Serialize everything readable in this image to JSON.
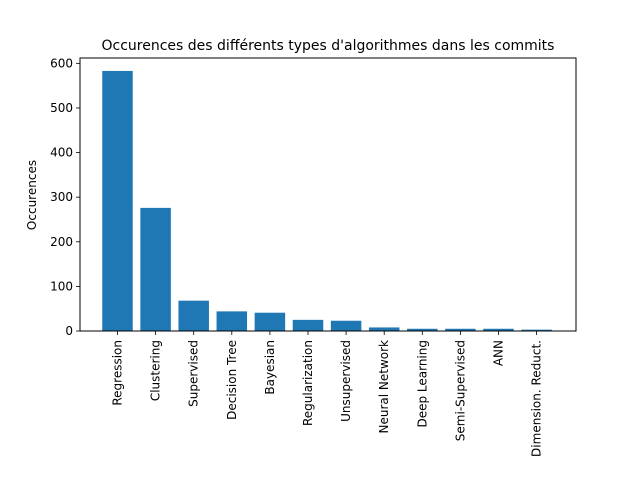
{
  "chart_data": {
    "type": "bar",
    "title": "Occurences des différents types d'algorithmes dans les commits",
    "xlabel": "",
    "ylabel": "Occurences",
    "ylim": [
      0,
      612
    ],
    "yticks": [
      0,
      100,
      200,
      300,
      400,
      500,
      600
    ],
    "grid": false,
    "bar_color": "#1f77b4",
    "categories": [
      "Regression",
      "Clustering",
      "Supervised",
      "Decision Tree",
      "Bayesian",
      "Regularization",
      "Unsupervised",
      "Neural Network",
      "Deep Learning",
      "Semi-Supervised",
      "ANN",
      "Dimension. Reduct."
    ],
    "values": [
      583,
      276,
      68,
      44,
      41,
      25,
      23,
      8,
      5,
      5,
      5,
      3
    ]
  }
}
